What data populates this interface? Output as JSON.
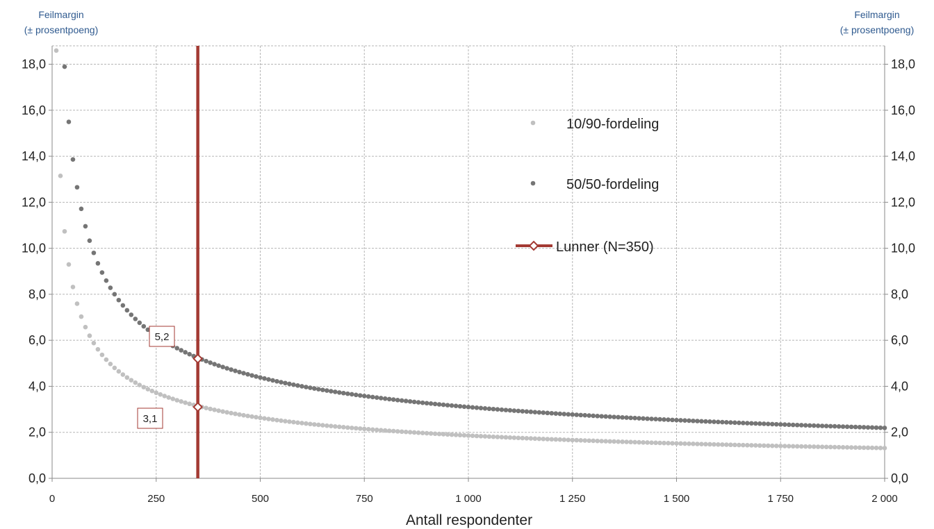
{
  "chart_data": {
    "type": "scatter",
    "ylabel": "Feilmargin (± prosentpoeng)",
    "ylabel_lines": [
      "Feilmargin",
      "(± prosentpoeng)"
    ],
    "xlabel": "Antall respondenter",
    "xlim": [
      0,
      2000
    ],
    "ylim": [
      0,
      18.8
    ],
    "x_ticks": [
      0,
      250,
      500,
      750,
      1000,
      1250,
      1500,
      1750,
      2000
    ],
    "x_tick_labels": [
      "0",
      "250",
      "500",
      "750",
      "1 000",
      "1 250",
      "1 500",
      "1 750",
      "2 000"
    ],
    "y_ticks": [
      0,
      2,
      4,
      6,
      8,
      10,
      12,
      14,
      16,
      18
    ],
    "y_tick_labels": [
      "0,0",
      "2,0",
      "4,0",
      "6,0",
      "8,0",
      "10,0",
      "12,0",
      "14,0",
      "16,0",
      "18,0"
    ],
    "grid": true,
    "legend_position": "right",
    "series": [
      {
        "name": "10/90-fordeling",
        "color": "#c0c0c0",
        "formula": "1.96*sqrt(0.1*0.9/n)*100",
        "x_range": [
          10,
          2000
        ],
        "sample_points": [
          [
            10,
            18.6
          ],
          [
            20,
            13.1
          ],
          [
            50,
            8.3
          ],
          [
            100,
            5.9
          ],
          [
            200,
            4.2
          ],
          [
            350,
            3.1
          ],
          [
            500,
            2.6
          ],
          [
            1000,
            1.9
          ],
          [
            2000,
            1.3
          ]
        ]
      },
      {
        "name": "50/50-fordeling",
        "color": "#757575",
        "formula": "1.96*sqrt(0.5*0.5/n)*100",
        "x_range": [
          30,
          2000
        ],
        "sample_points": [
          [
            30,
            17.9
          ],
          [
            50,
            13.9
          ],
          [
            100,
            9.8
          ],
          [
            200,
            6.9
          ],
          [
            350,
            5.2
          ],
          [
            500,
            4.4
          ],
          [
            1000,
            3.1
          ],
          [
            2000,
            2.2
          ]
        ]
      },
      {
        "name": "Lunner (N=350)",
        "color": "#a33a33",
        "type": "vline",
        "x": 350,
        "markers": [
          5.2,
          3.1
        ]
      }
    ],
    "annotations": [
      {
        "text": "5,2",
        "x": 350,
        "y": 5.24
      },
      {
        "text": "3,1",
        "x": 350,
        "y": 3.14
      }
    ]
  }
}
